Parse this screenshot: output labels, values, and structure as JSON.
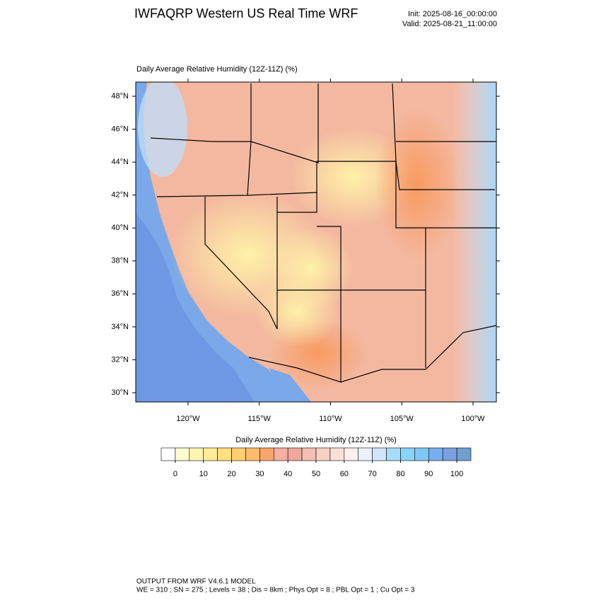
{
  "header": {
    "title": "IWFAQRP Western US Real Time WRF",
    "init": "Init: 2025-08-16_00:00:00",
    "valid": "Valid: 2025-08-21_11:00:00"
  },
  "map": {
    "title": "Daily Average Relative Humidity (12Z-11Z)   (%)",
    "latlim": [
      29.44,
      48.86
    ],
    "lonlim": [
      -123.67,
      -98.36
    ],
    "lat_ticks": [
      {
        "value": 30,
        "label": "30°N"
      },
      {
        "value": 32,
        "label": "32°N"
      },
      {
        "value": 34,
        "label": "34°N"
      },
      {
        "value": 36,
        "label": "36°N"
      },
      {
        "value": 38,
        "label": "38°N"
      },
      {
        "value": 40,
        "label": "40°N"
      },
      {
        "value": 42,
        "label": "42°N"
      },
      {
        "value": 44,
        "label": "44°N"
      },
      {
        "value": 46,
        "label": "46°N"
      },
      {
        "value": 48,
        "label": "48°N"
      }
    ],
    "lon_ticks": [
      {
        "value": -120,
        "label": "120°W"
      },
      {
        "value": -115,
        "label": "115°W"
      },
      {
        "value": -110,
        "label": "110°W"
      },
      {
        "value": -105,
        "label": "105°W"
      },
      {
        "value": -100,
        "label": "100°W"
      }
    ]
  },
  "colorbar": {
    "title": "Daily Average Relative Humidity (12Z-11Z)  (%)",
    "range": [
      -5,
      105
    ],
    "ticks": [
      0,
      10,
      20,
      30,
      40,
      50,
      60,
      70,
      80,
      90,
      100
    ],
    "colors": [
      "#ffffff",
      "#fffdd0",
      "#fff5b0",
      "#ffec98",
      "#ffe080",
      "#ffd070",
      "#ffbb6e",
      "#f9a56a",
      "#f4b0a0",
      "#f0a89c",
      "#f4c0b4",
      "#f8d0c4",
      "#fbe0d8",
      "#fdf0ec",
      "#ecf2fc",
      "#d0e6fa",
      "#a8dcfa",
      "#88d4f8",
      "#80c8f4",
      "#78aef0",
      "#7aa0e0",
      "#6f9fce"
    ]
  },
  "footer": {
    "lines": [
      "OUTPUT FROM WRF V4.6.1 MODEL",
      "WE = 310 ; SN = 275 ; Levels = 38 ; Dis = 8km ; Phys Opt = 8 ; PBL Opt = 1 ; Cu Opt = 3"
    ]
  }
}
